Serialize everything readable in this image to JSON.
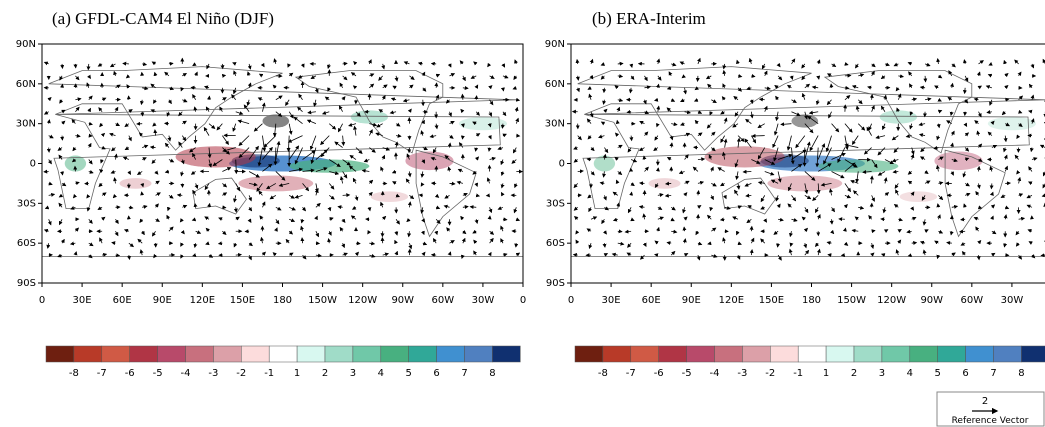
{
  "panels": [
    {
      "title": "(a) GFDL-CAM4 El Niño (DJF)",
      "lat_labels": [
        "90N",
        "60N",
        "30N",
        "0",
        "30S",
        "60S",
        "90S"
      ],
      "lon_labels": [
        "0",
        "30E",
        "60E",
        "90E",
        "120E",
        "150E",
        "180",
        "150W",
        "120W",
        "90W",
        "60W",
        "30W",
        "0"
      ]
    },
    {
      "title": "(b) ERA-Interim",
      "lat_labels": [
        "90N",
        "60N",
        "30N",
        "0",
        "30S",
        "60S",
        "90S"
      ],
      "lon_labels": [
        "0",
        "30E",
        "60E",
        "90E",
        "120E",
        "150E",
        "180",
        "150W",
        "120W",
        "90W",
        "60W",
        "30W"
      ]
    }
  ],
  "colorbars": [
    {
      "labels": [
        "-8",
        "-7",
        "-6",
        "-5",
        "-4",
        "-3",
        "-2",
        "-1",
        "1",
        "2",
        "3",
        "4",
        "5",
        "6",
        "7",
        "8"
      ]
    },
    {
      "labels": [
        "-8",
        "-7",
        "-6",
        "-5",
        "-4",
        "-3",
        "-2",
        "-1",
        "1",
        "2",
        "3",
        "4",
        "5",
        "6",
        "7",
        "8"
      ]
    }
  ],
  "reference_vector": {
    "magnitude": "2",
    "label": "Reference Vector"
  }
}
